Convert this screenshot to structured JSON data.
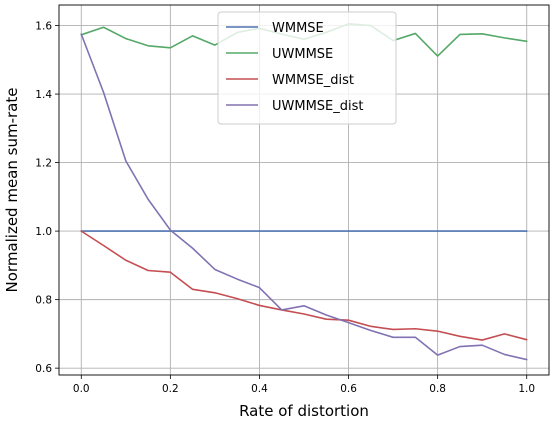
{
  "chart_data": {
    "type": "line",
    "xlabel": "Rate of distortion",
    "ylabel": "Normalized mean sum-rate",
    "xlim": [
      -0.05,
      1.05
    ],
    "ylim": [
      0.58,
      1.66
    ],
    "xticks": [
      0.0,
      0.2,
      0.4,
      0.6,
      0.8,
      1.0
    ],
    "xtick_labels": [
      "0.0",
      "0.2",
      "0.4",
      "0.6",
      "0.8",
      "1.0"
    ],
    "yticks": [
      0.6,
      0.8,
      1.0,
      1.2,
      1.4,
      1.6
    ],
    "ytick_labels": [
      "0.6",
      "0.8",
      "1.0",
      "1.2",
      "1.4",
      "1.6"
    ],
    "grid": true,
    "legend_position": "top-center",
    "x": [
      0.0,
      0.05,
      0.1,
      0.15,
      0.2,
      0.25,
      0.3,
      0.35,
      0.4,
      0.45,
      0.5,
      0.55,
      0.6,
      0.65,
      0.7,
      0.75,
      0.8,
      0.85,
      0.9,
      0.95,
      1.0
    ],
    "series": [
      {
        "name": "WMMSE",
        "color": "#4c72b0",
        "values": [
          1.0,
          1.0,
          1.0,
          1.0,
          1.0,
          1.0,
          1.0,
          1.0,
          1.0,
          1.0,
          1.0,
          1.0,
          1.0,
          1.0,
          1.0,
          1.0,
          1.0,
          1.0,
          1.0,
          1.0,
          1.0
        ]
      },
      {
        "name": "UWMMSE",
        "color": "#55a868",
        "values": [
          1.573,
          1.595,
          1.562,
          1.541,
          1.535,
          1.57,
          1.543,
          1.58,
          1.592,
          1.575,
          1.56,
          1.58,
          1.605,
          1.6,
          1.556,
          1.577,
          1.511,
          1.574,
          1.576,
          1.564,
          1.554
        ]
      },
      {
        "name": "WMMSE_dist",
        "color": "#c44e52",
        "values": [
          1.0,
          0.958,
          0.915,
          0.885,
          0.88,
          0.83,
          0.82,
          0.803,
          0.783,
          0.77,
          0.758,
          0.743,
          0.74,
          0.722,
          0.713,
          0.715,
          0.708,
          0.693,
          0.682,
          0.7,
          0.683
        ]
      },
      {
        "name": "UWMMSE_dist",
        "color": "#8172b2",
        "values": [
          1.575,
          1.405,
          1.205,
          1.093,
          1.003,
          0.95,
          0.888,
          0.86,
          0.835,
          0.77,
          0.782,
          0.755,
          0.733,
          0.71,
          0.69,
          0.69,
          0.638,
          0.663,
          0.667,
          0.64,
          0.625
        ]
      }
    ]
  }
}
